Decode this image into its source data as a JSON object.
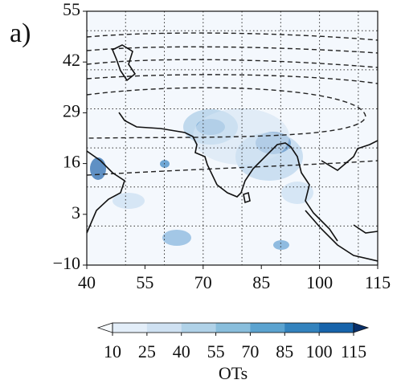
{
  "chart_data": {
    "type": "map",
    "panel_label": "a)",
    "xlim": [
      40,
      115
    ],
    "xticks": [
      40,
      55,
      70,
      85,
      100,
      115
    ],
    "ylim": [
      -10,
      55
    ],
    "yticks": [
      {
        "value": -10,
        "label": "−10"
      },
      3,
      16,
      29,
      42,
      55
    ],
    "xgrid": [
      50,
      60,
      70,
      80,
      90,
      100,
      110
    ],
    "ygrid": [
      0,
      10,
      20,
      30,
      40,
      50
    ],
    "colorbar": {
      "label": "OTs",
      "lim": [
        10,
        115
      ],
      "ticks": [
        10,
        25,
        40,
        55,
        70,
        85,
        100,
        115
      ],
      "extend": "both",
      "colors": [
        "#f7fbff",
        "#e3eef9",
        "#cfe1f2",
        "#b0d2e8",
        "#89bedc",
        "#5ba3d0",
        "#3383be",
        "#1764ab",
        "#08306b"
      ]
    }
  }
}
